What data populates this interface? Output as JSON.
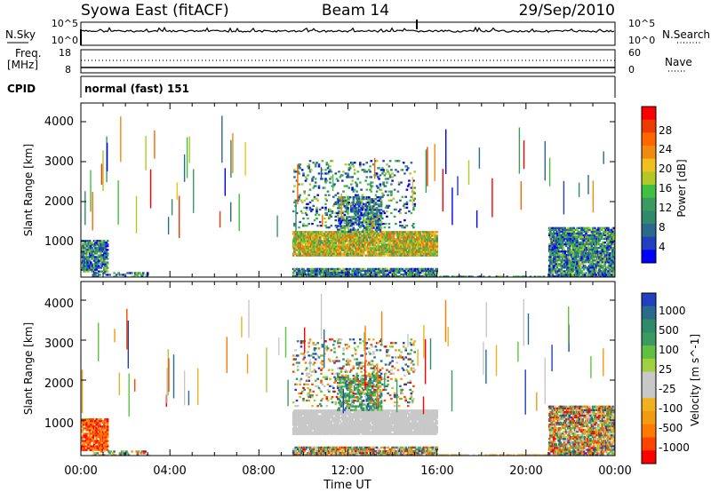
{
  "header": {
    "station": "Syowa East (fitACF)",
    "beam": "Beam 14",
    "date": "29/Sep/2010"
  },
  "noise_panel": {
    "left_label": "N.Sky",
    "right_label": "N.Search",
    "left_ticks": [
      "10^5",
      "10^0"
    ],
    "right_ticks": [
      "10^5",
      "10^0"
    ]
  },
  "freq_panel": {
    "left_label_line1": "Freq.",
    "left_label_line2": "[MHz]",
    "left_ticks": [
      "18",
      "8"
    ],
    "right_ticks": [
      "60",
      "0"
    ],
    "right_label": "Nave"
  },
  "cpid_panel": {
    "label": "CPID",
    "text": "normal (fast) 151"
  },
  "chart_data": [
    {
      "type": "heatmap",
      "name": "power",
      "ylabel": "Slant Range [km]",
      "yticks": [
        "4000",
        "3000",
        "2000",
        "1000"
      ],
      "colorbar_label": "Power [dB]",
      "colorbar_ticks": [
        "28",
        "24",
        "20",
        "16",
        "12",
        "8",
        "4"
      ],
      "colorbar_colors": [
        "#ff0000",
        "#ee3a00",
        "#ff6600",
        "#f28a12",
        "#f0c020",
        "#b0c828",
        "#40c040",
        "#3a9a60",
        "#2e8a6a",
        "#2a6a8a",
        "#2040c0",
        "#0000ff"
      ]
    },
    {
      "type": "heatmap",
      "name": "velocity",
      "ylabel": "Slant Range [km]",
      "yticks": [
        "4000",
        "3000",
        "2000",
        "1000"
      ],
      "xlabel": "Time UT",
      "xticks": [
        "00:00",
        "04:00",
        "08:00",
        "12:00",
        "16:00",
        "20:00",
        "00:00"
      ],
      "colorbar_label": "Velocity [m s^-1]",
      "colorbar_ticks": [
        "1000",
        "500",
        "100",
        "25",
        "-25",
        "-100",
        "-500",
        "-1000"
      ],
      "colorbar_colors": [
        "#2040c0",
        "#2a6a8a",
        "#2e8a6a",
        "#3a9a60",
        "#60c040",
        "#9ed040",
        "#c8c8c8",
        "#c8c8c8",
        "#f0b020",
        "#f29a12",
        "#ff7a00",
        "#ff4400",
        "#ff0000"
      ]
    }
  ]
}
